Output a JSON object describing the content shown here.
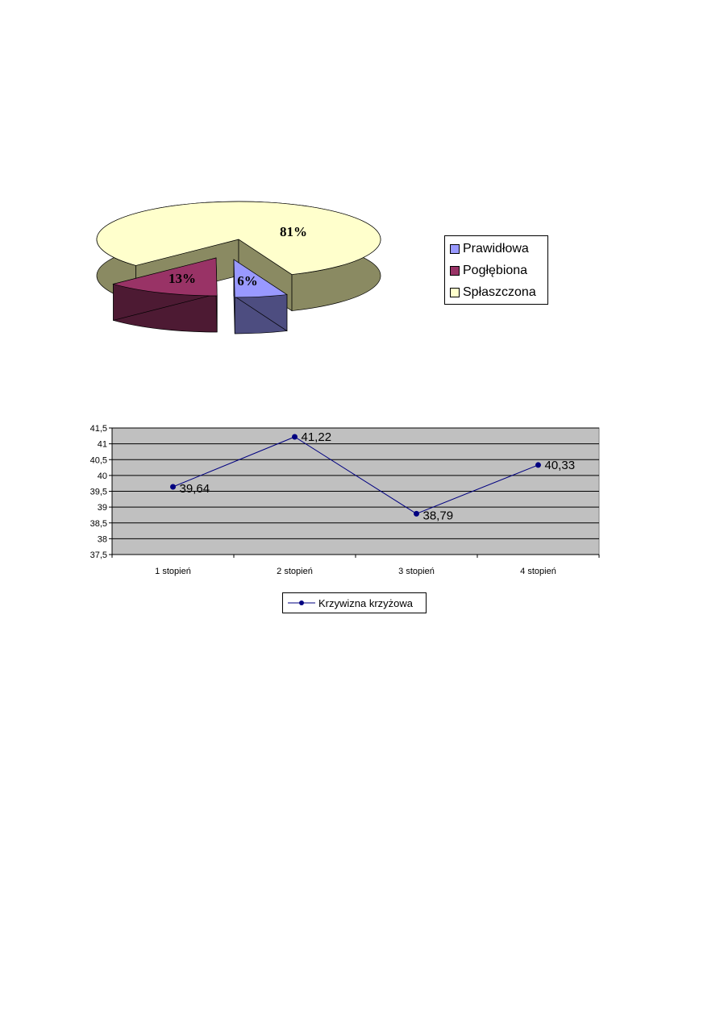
{
  "chart_data": [
    {
      "type": "pie",
      "style": "3d-exploded",
      "categories": [
        "Prawidłowa",
        "Pogłębiona",
        "Spłaszczona"
      ],
      "values": [
        6,
        13,
        81
      ],
      "data_labels": [
        "6%",
        "13%",
        "81%"
      ],
      "colors": [
        "#9999ff",
        "#993366",
        "#ffffcc"
      ],
      "side_colors": [
        "#4d4d80",
        "#4d1a33",
        "#8a8a62"
      ],
      "legend_position": "right"
    },
    {
      "type": "line",
      "categories": [
        "1 stopień",
        "2 stopień",
        "3 stopień",
        "4 stopień"
      ],
      "series": [
        {
          "name": "Krzywizna krzyżowa",
          "values": [
            39.64,
            41.22,
            38.79,
            40.33
          ],
          "color": "#000080"
        }
      ],
      "data_labels": [
        "39,64",
        "41,22",
        "38,79",
        "40,33"
      ],
      "ylim": [
        37.5,
        41.5
      ],
      "yticks": [
        "37,5",
        "38",
        "38,5",
        "39",
        "39,5",
        "40",
        "40,5",
        "41",
        "41,5"
      ],
      "plot_background": "#c0c0c0",
      "grid": true,
      "legend_position": "bottom"
    }
  ]
}
